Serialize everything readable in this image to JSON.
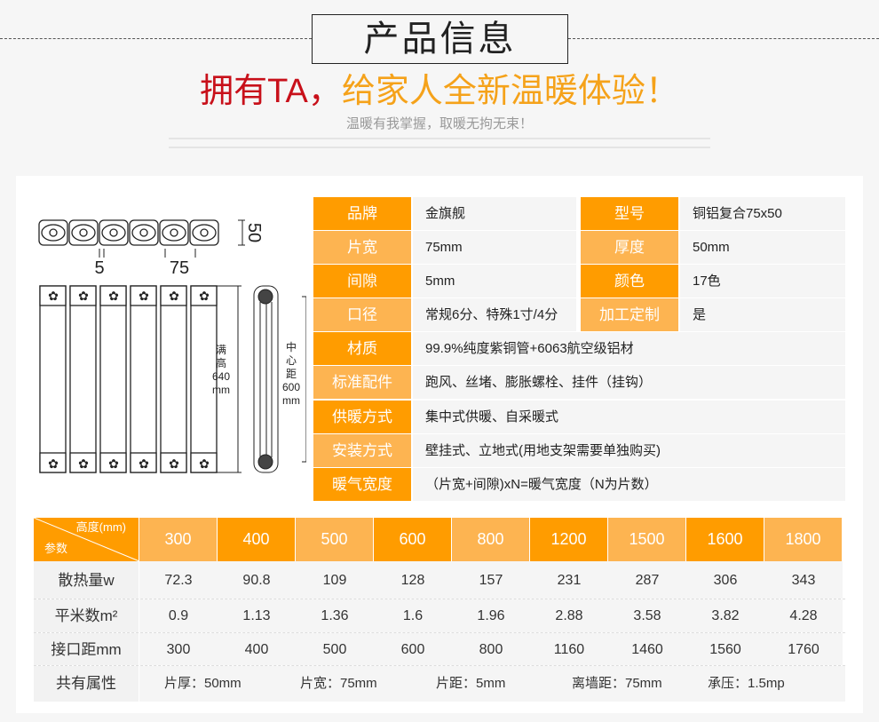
{
  "header": {
    "title": "产品信息",
    "slogan_red": "拥有TA，",
    "slogan_orange": "给家人全新温暖体验！",
    "subtitle": "温暖有我掌握，取暖无拘无束！"
  },
  "diagram": {
    "gap": "5",
    "width": "75",
    "thickness": "50",
    "full_height": [
      "满",
      "高",
      "640",
      "mm"
    ],
    "center_distance": [
      "中",
      "心",
      "距",
      "600",
      "mm"
    ]
  },
  "specs": [
    {
      "label": "品牌",
      "value": "金旗舰",
      "label2": "型号",
      "value2": "铜铝复合75x50"
    },
    {
      "label": "片宽",
      "value": "75mm",
      "label2": "厚度",
      "value2": "50mm"
    },
    {
      "label": "间隙",
      "value": "5mm",
      "label2": "颜色",
      "value2": "17色"
    },
    {
      "label": "口径",
      "value": "常规6分、特殊1寸/4分",
      "label2": "加工定制",
      "value2": "是"
    },
    {
      "label": "材质",
      "value": "99.9%纯度紫铜管+6063航空级铝材"
    },
    {
      "label": "标准配件",
      "value": "跑风、丝堵、膨胀螺栓、挂件（挂钩）"
    },
    {
      "label": "供暖方式",
      "value": "集中式供暖、自采暖式"
    },
    {
      "label": "安装方式",
      "value": "壁挂式、立地式(用地支架需要单独购买)"
    },
    {
      "label": "暖气宽度",
      "value": "（片宽+间隙)xN=暖气宽度（N为片数）"
    }
  ],
  "params": {
    "corner_top": "高度(mm)",
    "corner_bottom": "参数",
    "heights": [
      "300",
      "400",
      "500",
      "600",
      "800",
      "1200",
      "1500",
      "1600",
      "1800"
    ],
    "rows": [
      {
        "label": "散热量w",
        "values": [
          "72.3",
          "90.8",
          "109",
          "128",
          "157",
          "231",
          "287",
          "306",
          "343"
        ]
      },
      {
        "label": "平米数m²",
        "values": [
          "0.9",
          "1.13",
          "1.36",
          "1.6",
          "1.96",
          "2.88",
          "3.58",
          "3.82",
          "4.28"
        ]
      },
      {
        "label": "接口距mm",
        "values": [
          "300",
          "400",
          "500",
          "600",
          "800",
          "1160",
          "1460",
          "1560",
          "1760"
        ]
      }
    ],
    "common_label": "共有属性",
    "common": [
      "片厚：50mm",
      "片宽：75mm",
      "片距：5mm",
      "离墙距：75mm",
      "承压：1.5mp"
    ]
  },
  "colors": {
    "dark_orange": "#ff9c00",
    "light_orange": "#fdb451",
    "red": "#c8101a"
  }
}
